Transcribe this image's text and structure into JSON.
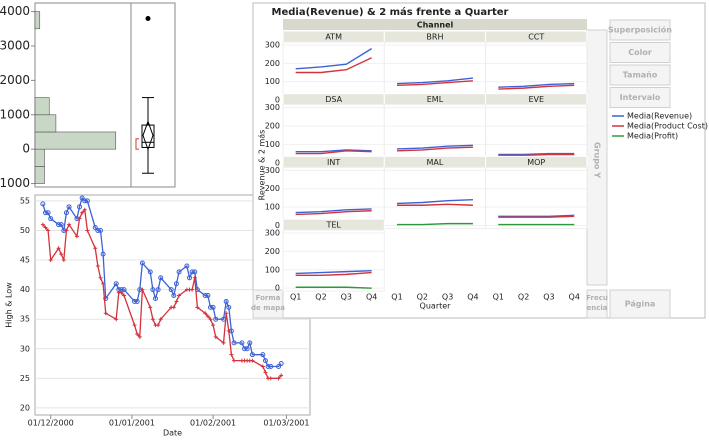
{
  "chart_data": [
    {
      "type": "histogram",
      "bins": [
        -1000,
        -500,
        0,
        500,
        1000,
        1500,
        2000,
        2500,
        3000,
        3500,
        4000
      ],
      "counts": [
        10,
        10,
        85,
        22,
        15,
        0,
        0,
        0,
        0,
        5
      ],
      "xlim": [
        0,
        100
      ],
      "ylim": [
        -1100,
        4250
      ],
      "yticks": [
        -1000,
        0,
        1000,
        2000,
        3000,
        4000
      ],
      "color": "#c9d7c6",
      "box": {
        "min": -700,
        "q1": 50,
        "median": 200,
        "q3": 700,
        "max": 1500,
        "mean": 400,
        "outliers": [
          3800
        ],
        "shortest_half": [
          0,
          300
        ]
      }
    },
    {
      "type": "line",
      "x": [
        "28/11/2000",
        "29/11/2000",
        "30/11/2000",
        "01/12/2000",
        "04/12/2000",
        "05/12/2000",
        "06/12/2000",
        "07/12/2000",
        "08/12/2000",
        "11/12/2000",
        "12/12/2000",
        "13/12/2000",
        "14/12/2000",
        "15/12/2000",
        "18/12/2000",
        "19/12/2000",
        "20/12/2000",
        "21/12/2000",
        "22/12/2000",
        "26/12/2000",
        "27/12/2000",
        "28/12/2000",
        "29/12/2000",
        "02/01/2001",
        "03/01/2001",
        "04/01/2001",
        "05/01/2001",
        "08/01/2001",
        "09/01/2001",
        "10/01/2001",
        "11/01/2001",
        "12/01/2001",
        "16/01/2001",
        "17/01/2001",
        "18/01/2001",
        "19/01/2001",
        "22/01/2001",
        "23/01/2001",
        "24/01/2001",
        "25/01/2001",
        "26/01/2001",
        "29/01/2001",
        "30/01/2001",
        "31/01/2001",
        "01/02/2001",
        "02/02/2001",
        "05/02/2001",
        "06/02/2001",
        "07/02/2001",
        "08/02/2001",
        "09/02/2001",
        "12/02/2001",
        "13/02/2001",
        "14/02/2001",
        "15/02/2001",
        "16/02/2001",
        "20/02/2001",
        "21/02/2001",
        "22/02/2001",
        "23/02/2001",
        "26/02/2001",
        "27/02/2001"
      ],
      "series": [
        {
          "color": "#3d62d6",
          "marker": "circle",
          "values": [
            54.5,
            53,
            53,
            52,
            51,
            51,
            50,
            53,
            54,
            52,
            54,
            55.5,
            55,
            55,
            50.5,
            50,
            50,
            46,
            38.5,
            41,
            40,
            40,
            40,
            38,
            38,
            40,
            44.5,
            43,
            40,
            38.5,
            40,
            42,
            40,
            39,
            41,
            43,
            44,
            42,
            43,
            43,
            40,
            39,
            39,
            37,
            37,
            35,
            35,
            38,
            37,
            33,
            31,
            31,
            30,
            30,
            31,
            29,
            29,
            28,
            27,
            27,
            27,
            27.5
          ]
        },
        {
          "color": "#d4323c",
          "marker": "plus",
          "values": [
            51,
            50.5,
            50,
            45,
            47,
            46,
            45,
            50,
            51,
            49,
            52,
            53,
            53.5,
            50,
            47,
            44,
            42,
            41,
            36,
            35,
            39.5,
            39.5,
            39,
            34,
            32.5,
            32,
            40,
            37,
            35,
            34,
            34,
            35,
            37,
            37,
            38,
            39,
            40,
            40,
            40,
            42,
            37,
            36,
            35.5,
            35,
            34,
            32,
            31,
            36,
            33,
            29,
            28,
            28,
            28,
            28,
            28,
            28,
            27,
            26,
            25,
            25,
            25,
            25.5
          ]
        }
      ],
      "y_label": "High & Low",
      "x_label": "Date",
      "xlim": [
        "25/11/2000",
        "10/03/2001"
      ],
      "xticks": [
        "01/12/2000",
        "01/01/2001",
        "01/02/2001",
        "01/03/2001"
      ],
      "ylim": [
        18.8,
        56
      ],
      "yticks": [
        20,
        25,
        30,
        35,
        40,
        45,
        50,
        55
      ],
      "grid": true
    },
    {
      "type": "trellis-line",
      "title": "Media(Revenue) & 2 más frente a Quarter",
      "group_label": "Channel",
      "y_label": "Revenue & 2 más",
      "x_label": "Quarter",
      "categories": [
        "Q1",
        "Q2",
        "Q3",
        "Q4"
      ],
      "ylim": [
        -16,
        316
      ],
      "yticks": [
        0,
        100,
        200,
        300
      ],
      "grid": true,
      "series": [
        {
          "name": "Media(Revenue)",
          "color": "#3d62d6"
        },
        {
          "name": "Media(Product Cost)",
          "color": "#d4323c"
        },
        {
          "name": "Media(Profit)",
          "color": "#2a9a3a"
        }
      ],
      "panels": [
        {
          "name": "ATM",
          "values": [
            [
              170,
              180,
              195,
              280
            ],
            [
              150,
              150,
              165,
              230
            ],
            [
              5,
              10,
              10,
              15
            ]
          ]
        },
        {
          "name": "BRH",
          "values": [
            [
              90,
              95,
              105,
              120
            ],
            [
              80,
              85,
              95,
              105
            ],
            [
              5,
              5,
              5,
              10
            ]
          ]
        },
        {
          "name": "CCT",
          "values": [
            [
              70,
              75,
              85,
              90
            ],
            [
              60,
              65,
              75,
              80
            ],
            [
              5,
              5,
              5,
              5
            ]
          ]
        },
        {
          "name": "DSA",
          "values": [
            [
              60,
              60,
              70,
              65
            ],
            [
              50,
              50,
              65,
              60
            ],
            [
              5,
              5,
              5,
              5
            ]
          ]
        },
        {
          "name": "EML",
          "values": [
            [
              75,
              80,
              90,
              95
            ],
            [
              65,
              70,
              80,
              85
            ],
            [
              5,
              5,
              5,
              5
            ]
          ]
        },
        {
          "name": "EVE",
          "values": [
            [
              45,
              45,
              50,
              50
            ],
            [
              40,
              40,
              45,
              45
            ],
            [
              5,
              5,
              5,
              5
            ]
          ]
        },
        {
          "name": "INT",
          "values": [
            [
              70,
              75,
              85,
              90
            ],
            [
              60,
              65,
              75,
              80
            ],
            [
              5,
              5,
              5,
              5
            ]
          ]
        },
        {
          "name": "MAL",
          "values": [
            [
              120,
              125,
              135,
              140
            ],
            [
              110,
              110,
              115,
              110
            ],
            [
              5,
              5,
              10,
              10
            ]
          ]
        },
        {
          "name": "MOP",
          "values": [
            [
              50,
              50,
              50,
              55
            ],
            [
              45,
              45,
              45,
              50
            ],
            [
              5,
              5,
              5,
              5
            ]
          ]
        },
        {
          "name": "TEL",
          "values": [
            [
              80,
              85,
              90,
              95
            ],
            [
              70,
              70,
              75,
              85
            ],
            [
              5,
              5,
              5,
              0
            ]
          ]
        }
      ]
    }
  ],
  "ui": {
    "buttons": [
      "Superposición",
      "Color",
      "Tamaño",
      "Intervalo"
    ],
    "group_y": "Grupo Y",
    "page": "Página",
    "freq": [
      "Frecu",
      "encia"
    ],
    "map_shape": [
      "Forma",
      "de mapa"
    ]
  }
}
